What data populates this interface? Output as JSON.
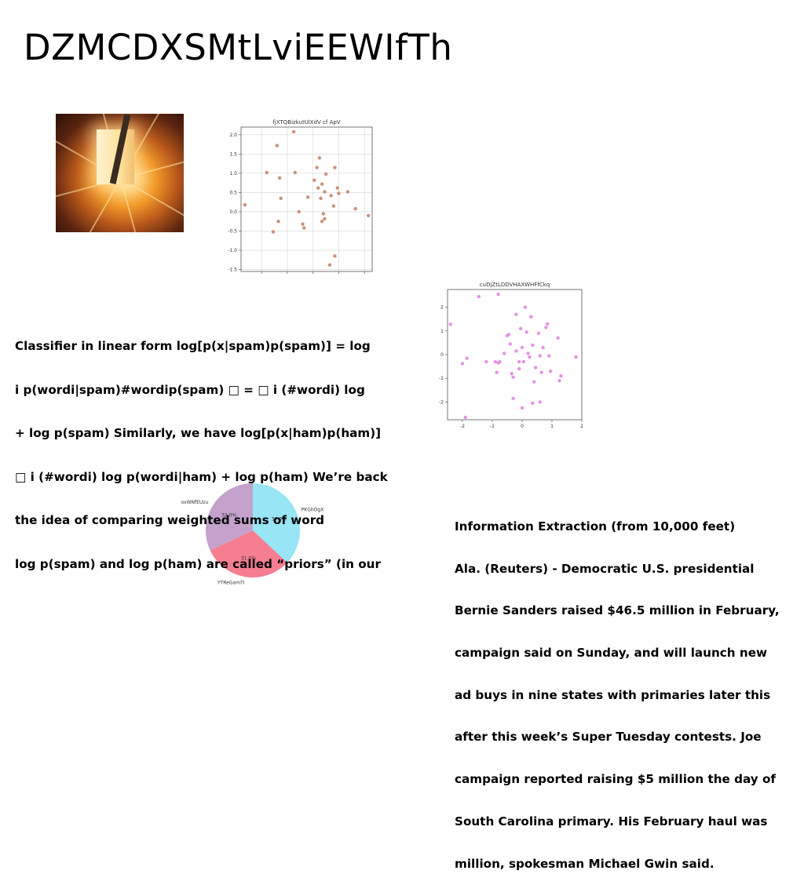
{
  "slide": {
    "title": "DZMCDXSMtLviEEWIfTh",
    "photo_icon": "glowing-light-photo"
  },
  "left_text": {
    "lines": [
      "Classifier in linear form log[p(x|spam)p(spam)] = log",
      "i p(wordi|spam)#wordip(spam) □ = □ i (#wordi) log",
      "+ log p(spam) Similarly, we have log[p(x|ham)p(ham)]",
      "□ i (#wordi) log p(wordi|ham) + log p(ham) We’re back",
      "the idea of comparing weighted sums of word",
      "log p(spam) and log p(ham) are called “priors” (in our"
    ]
  },
  "right_text": {
    "lines": [
      "Information Extraction (from 10,000 feet)",
      "Ala. (Reuters) - Democratic U.S. presidential",
      "Bernie Sanders raised $46.5 million in February,",
      "campaign said on Sunday, and will launch new",
      "ad buys in nine states with primaries later this",
      "after this week’s Super Tuesday contests. Joe",
      "campaign reported raising $5 million the day of",
      "South Carolina primary. His February haul was",
      "million, spokesman Michael Gwin said."
    ]
  },
  "chart_data": [
    {
      "type": "scatter",
      "title": "fjXTQBizkutUlXdV cf ApV",
      "color": "#c0866c",
      "grid": true,
      "xlim": [
        -2.8,
        2.3
      ],
      "ylim": [
        -1.55,
        2.2
      ],
      "xticks": [
        -2,
        -1,
        0,
        1,
        2
      ],
      "yticks": [
        -1.5,
        -1.0,
        -0.5,
        0.0,
        0.5,
        1.0,
        1.5,
        2.0
      ],
      "ytick_labels": [
        "-1.5",
        "-1.0",
        "-0.5",
        "0.0",
        "0.5",
        "1.0",
        "1.5",
        "2.0"
      ],
      "points": [
        [
          -2.65,
          0.18
        ],
        [
          -1.8,
          1.02
        ],
        [
          -1.55,
          -0.52
        ],
        [
          -1.4,
          1.72
        ],
        [
          -1.3,
          0.88
        ],
        [
          -1.25,
          0.35
        ],
        [
          -1.35,
          -0.25
        ],
        [
          -0.75,
          2.08
        ],
        [
          -0.7,
          1.02
        ],
        [
          -0.55,
          0.0
        ],
        [
          -0.4,
          -0.32
        ],
        [
          -0.35,
          -0.42
        ],
        [
          -0.2,
          0.38
        ],
        [
          0.05,
          0.82
        ],
        [
          0.15,
          1.15
        ],
        [
          0.2,
          0.62
        ],
        [
          0.25,
          1.4
        ],
        [
          0.3,
          0.35
        ],
        [
          0.35,
          0.72
        ],
        [
          0.45,
          0.52
        ],
        [
          0.5,
          0.98
        ],
        [
          0.4,
          -0.05
        ],
        [
          0.45,
          -0.18
        ],
        [
          0.35,
          -0.25
        ],
        [
          0.7,
          0.42
        ],
        [
          0.8,
          0.15
        ],
        [
          0.85,
          1.15
        ],
        [
          0.95,
          0.62
        ],
        [
          1.0,
          0.48
        ],
        [
          1.35,
          0.52
        ],
        [
          1.65,
          0.08
        ],
        [
          2.15,
          -0.1
        ],
        [
          0.65,
          -1.38
        ],
        [
          0.85,
          -1.15
        ]
      ]
    },
    {
      "type": "scatter",
      "title": "cuDjZtLDDVHAXWHFfCkq",
      "color": "#e08ae0",
      "grid": false,
      "xlim": [
        -2.5,
        2.0
      ],
      "ylim": [
        -2.75,
        2.75
      ],
      "xticks": [
        -2,
        -1,
        0,
        1,
        2
      ],
      "yticks": [
        -2,
        -1,
        0,
        1,
        2
      ],
      "ytick_labels": [
        "-2",
        "-1",
        "0",
        "1",
        "2"
      ],
      "points": [
        [
          -2.4,
          1.28
        ],
        [
          -2.0,
          -0.38
        ],
        [
          -1.85,
          -0.15
        ],
        [
          -1.45,
          2.45
        ],
        [
          -1.2,
          -0.3
        ],
        [
          -0.9,
          -0.3
        ],
        [
          -0.85,
          -0.75
        ],
        [
          -0.8,
          -0.35
        ],
        [
          -0.75,
          -0.3
        ],
        [
          -0.8,
          2.55
        ],
        [
          -0.6,
          0.05
        ],
        [
          -0.5,
          0.8
        ],
        [
          -0.45,
          0.85
        ],
        [
          -0.4,
          0.45
        ],
        [
          -0.35,
          -0.8
        ],
        [
          -0.3,
          -0.95
        ],
        [
          -0.2,
          1.7
        ],
        [
          -0.2,
          0.15
        ],
        [
          -0.1,
          -0.6
        ],
        [
          -0.05,
          1.1
        ],
        [
          0.0,
          0.3
        ],
        [
          0.05,
          -0.3
        ],
        [
          0.1,
          2.0
        ],
        [
          0.15,
          0.95
        ],
        [
          0.2,
          0.05
        ],
        [
          0.25,
          -0.1
        ],
        [
          0.3,
          1.6
        ],
        [
          0.35,
          0.4
        ],
        [
          0.4,
          -1.15
        ],
        [
          0.45,
          -0.55
        ],
        [
          0.55,
          0.9
        ],
        [
          0.6,
          -0.05
        ],
        [
          0.65,
          -0.75
        ],
        [
          0.7,
          0.3
        ],
        [
          0.8,
          1.15
        ],
        [
          0.85,
          1.3
        ],
        [
          0.9,
          -0.05
        ],
        [
          0.95,
          -0.7
        ],
        [
          1.2,
          0.7
        ],
        [
          1.25,
          -1.1
        ],
        [
          1.3,
          -0.9
        ],
        [
          1.8,
          -0.1
        ],
        [
          -1.9,
          -2.65
        ],
        [
          -0.3,
          -1.85
        ],
        [
          0.0,
          -2.25
        ],
        [
          0.35,
          -2.05
        ],
        [
          0.6,
          -2.0
        ],
        [
          -0.1,
          -0.3
        ]
      ]
    },
    {
      "type": "pie",
      "slices": [
        {
          "label": "PKGhOgX",
          "value": 37.0,
          "pct_label": "37.0%",
          "color": "#97e5f5"
        },
        {
          "label": "YTReGamTI",
          "value": 31.0,
          "pct_label": "31.0%",
          "color": "#f57e90"
        },
        {
          "label": "oxWNfEUzu",
          "value": 32.0,
          "pct_label": "32.0%",
          "color": "#c4a2cc"
        }
      ]
    }
  ]
}
